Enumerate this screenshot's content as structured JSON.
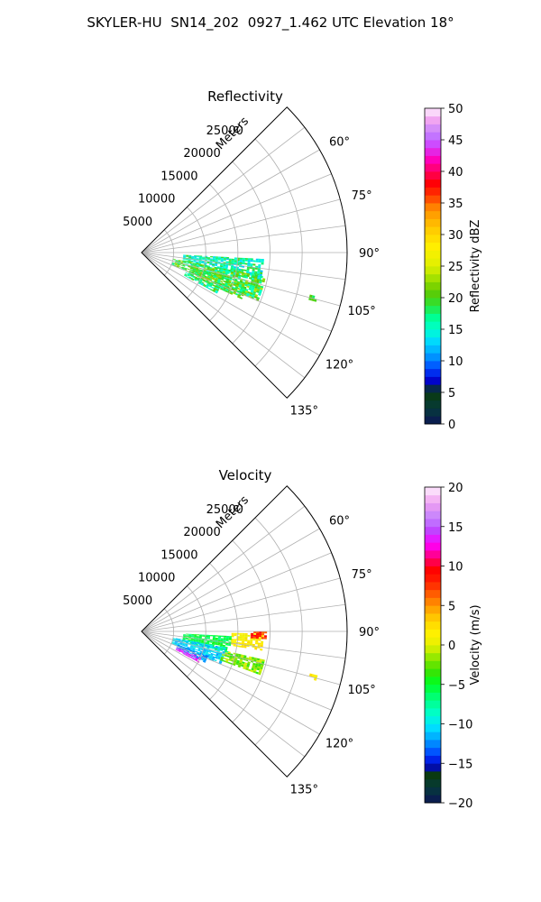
{
  "figure": {
    "title": "SKYLER-HU  SN14_202  0927_1.462 UTC Elevation 18°"
  },
  "chart_data": [
    {
      "type": "heatmap",
      "subtype": "polar-sector (PPI radar)",
      "title": "Reflectivity",
      "radial_axis": {
        "label": "Meters",
        "ticks": [
          5000,
          10000,
          15000,
          20000,
          25000
        ],
        "tick_labels": [
          "5000",
          "10000",
          "15000",
          "20000",
          "25000"
        ],
        "range": [
          0,
          32000
        ]
      },
      "angular_axis": {
        "range_deg": [
          45,
          135
        ],
        "ticks": [
          60,
          75,
          90,
          105,
          120,
          135
        ],
        "tick_labels": [
          "60°",
          "75°",
          "90°",
          "105°",
          "120°",
          "135°"
        ]
      },
      "grid": true,
      "colorbar": {
        "label": "Reflectivity dBZ",
        "range": [
          0,
          50
        ],
        "ticks": [
          0,
          5,
          10,
          15,
          20,
          25,
          30,
          35,
          40,
          45,
          50
        ],
        "tick_labels": [
          "0",
          "5",
          "10",
          "15",
          "20",
          "25",
          "30",
          "35",
          "40",
          "45",
          "50"
        ],
        "colormap": "pyart-NWSRef-like (dark blue → cyan → green → yellow → red → magenta → pink)"
      },
      "echo_regions": [
        {
          "azimuth_deg": [
            93,
            103
          ],
          "range_m": [
            6500,
            19000
          ],
          "value": [
            12,
            20
          ]
        },
        {
          "azimuth_deg": [
            101,
            112
          ],
          "range_m": [
            5000,
            19500
          ],
          "value": [
            15,
            24
          ]
        },
        {
          "azimuth_deg": [
            106,
            115
          ],
          "range_m": [
            8000,
            17000
          ],
          "value": [
            16,
            23
          ]
        },
        {
          "azimuth_deg": [
            114,
            118
          ],
          "range_m": [
            7500,
            13000
          ],
          "value": [
            14,
            21
          ]
        },
        {
          "azimuth_deg": [
            104,
            105
          ],
          "range_m": [
            27000,
            28000
          ],
          "value": [
            18,
            21
          ]
        }
      ]
    },
    {
      "type": "heatmap",
      "subtype": "polar-sector (PPI radar)",
      "title": "Velocity",
      "radial_axis": {
        "label": "Meters",
        "ticks": [
          5000,
          10000,
          15000,
          20000,
          25000
        ],
        "tick_labels": [
          "5000",
          "10000",
          "15000",
          "20000",
          "25000"
        ],
        "range": [
          0,
          32000
        ]
      },
      "angular_axis": {
        "range_deg": [
          45,
          135
        ],
        "ticks": [
          60,
          75,
          90,
          105,
          120,
          135
        ],
        "tick_labels": [
          "60°",
          "75°",
          "90°",
          "105°",
          "120°",
          "135°"
        ]
      },
      "grid": true,
      "colorbar": {
        "label": "Velocity (m/s)",
        "range": [
          -20,
          20
        ],
        "ticks": [
          -20,
          -15,
          -10,
          -5,
          0,
          5,
          10,
          15,
          20
        ],
        "tick_labels": [
          "−20",
          "−15",
          "−10",
          "−5",
          "0",
          "5",
          "10",
          "15",
          "20"
        ],
        "colormap": "pyart-NWSVel-like (dark blue → cyan → green → yellow → orange → red → magenta → pink)"
      },
      "echo_regions": [
        {
          "azimuth_deg": [
            91,
            99
          ],
          "range_m": [
            14000,
            19000
          ],
          "value": [
            0,
            3
          ]
        },
        {
          "azimuth_deg": [
            90,
            93
          ],
          "range_m": [
            17000,
            19500
          ],
          "value": [
            6,
            10
          ]
        },
        {
          "azimuth_deg": [
            93,
            103
          ],
          "range_m": [
            6500,
            14000
          ],
          "value": [
            -7,
            -4
          ]
        },
        {
          "azimuth_deg": [
            101,
            112
          ],
          "range_m": [
            5000,
            13000
          ],
          "value": [
            -12,
            -9
          ]
        },
        {
          "azimuth_deg": [
            103,
            110
          ],
          "range_m": [
            13000,
            19500
          ],
          "value": [
            -4,
            0
          ]
        },
        {
          "azimuth_deg": [
            110,
            116
          ],
          "range_m": [
            6000,
            11000
          ],
          "value": [
            -14,
            -11
          ]
        },
        {
          "azimuth_deg": [
            114,
            118
          ],
          "range_m": [
            6000,
            10000
          ],
          "value": [
            12,
            16
          ]
        },
        {
          "azimuth_deg": [
            104,
            105
          ],
          "range_m": [
            27000,
            28000
          ],
          "value": [
            1,
            3
          ]
        }
      ]
    }
  ]
}
